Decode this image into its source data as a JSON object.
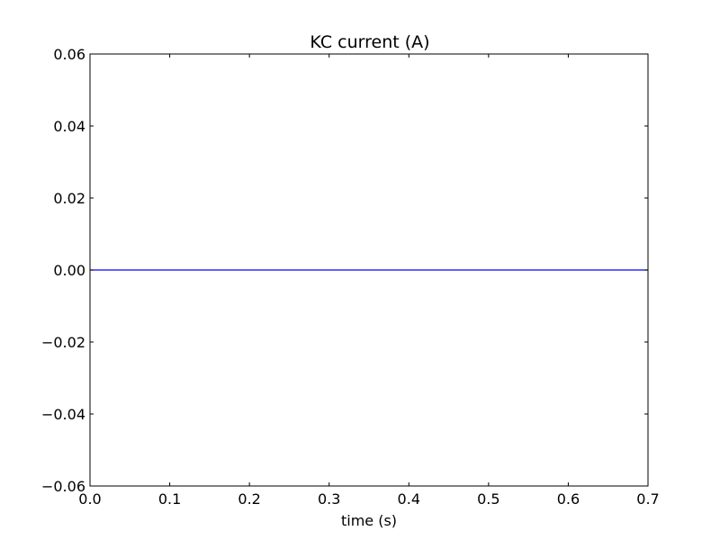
{
  "chart_data": {
    "type": "line",
    "title": "KC current (A)",
    "xlabel": "time (s)",
    "ylabel": "",
    "xlim": [
      0.0,
      0.7
    ],
    "ylim": [
      -0.06,
      0.06
    ],
    "x_ticks": [
      0.0,
      0.1,
      0.2,
      0.3,
      0.4,
      0.5,
      0.6,
      0.7
    ],
    "x_tick_labels": [
      "0.0",
      "0.1",
      "0.2",
      "0.3",
      "0.4",
      "0.5",
      "0.6",
      "0.7"
    ],
    "y_ticks": [
      0.06,
      0.04,
      0.02,
      0.0,
      -0.02,
      -0.04,
      -0.06
    ],
    "y_tick_labels": [
      "0.06",
      "0.04",
      "0.02",
      "0.00",
      "−0.02",
      "−0.04",
      "−0.06"
    ],
    "grid": false,
    "series": [
      {
        "x": [
          0.0,
          0.7
        ],
        "y": [
          0.0,
          0.0
        ],
        "color": "#0000ff"
      }
    ]
  }
}
